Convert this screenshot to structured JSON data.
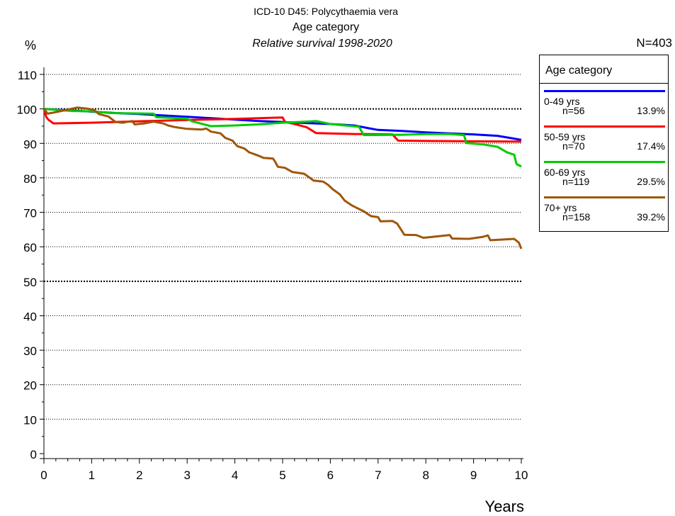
{
  "chart_data": {
    "type": "line",
    "title": "ICD-10 D45: Polycythaemia vera",
    "subtitle": "Age category",
    "subtitle2": "Relative survival 1998-2020",
    "n_total": "N=403",
    "ylabel": "%",
    "xlabel": "Years",
    "xlim": [
      0,
      10
    ],
    "ylim": [
      0,
      110
    ],
    "x_ticks": [
      "0",
      "1",
      "2",
      "3",
      "4",
      "5",
      "6",
      "7",
      "8",
      "9",
      "10"
    ],
    "y_ticks": [
      "0",
      "10",
      "20",
      "30",
      "40",
      "50",
      "60",
      "70",
      "80",
      "90",
      "100",
      "110"
    ],
    "legend": {
      "title": "Age category",
      "placement": "right"
    },
    "series": [
      {
        "name": "0-49 yrs",
        "n": "n=56",
        "pct": "13.9%",
        "color": "#0000ff",
        "points": [
          [
            0,
            100
          ],
          [
            0.5,
            99.6
          ],
          [
            1,
            99.2
          ],
          [
            1.5,
            98.8
          ],
          [
            2,
            98.5
          ],
          [
            2.5,
            98.1
          ],
          [
            3,
            97.7
          ],
          [
            3.5,
            97.3
          ],
          [
            4,
            96.9
          ],
          [
            4.5,
            96.5
          ],
          [
            5,
            96.2
          ],
          [
            5.5,
            95.9
          ],
          [
            6,
            95.6
          ],
          [
            6.5,
            95.2
          ],
          [
            6.8,
            94.4
          ],
          [
            7,
            93.9
          ],
          [
            7.5,
            93.6
          ],
          [
            8,
            93.2
          ],
          [
            8.5,
            92.9
          ],
          [
            9,
            92.6
          ],
          [
            9.5,
            92.2
          ],
          [
            9.8,
            91.5
          ],
          [
            10,
            91.0
          ]
        ]
      },
      {
        "name": "50-59 yrs",
        "n": "n=70",
        "pct": "17.4%",
        "color": "#ff0000",
        "points": [
          [
            0,
            100
          ],
          [
            0.05,
            97.6
          ],
          [
            0.1,
            96.8
          ],
          [
            0.2,
            95.8
          ],
          [
            1,
            96.0
          ],
          [
            2,
            96.4
          ],
          [
            3,
            96.8
          ],
          [
            4,
            97.1
          ],
          [
            5,
            97.5
          ],
          [
            5.05,
            96.2
          ],
          [
            5.2,
            95.8
          ],
          [
            5.5,
            94.7
          ],
          [
            5.7,
            93.0
          ],
          [
            6.5,
            92.7
          ],
          [
            7.3,
            92.6
          ],
          [
            7.42,
            90.8
          ],
          [
            8,
            90.7
          ],
          [
            9,
            90.6
          ],
          [
            10,
            90.5
          ]
        ]
      },
      {
        "name": "60-69 yrs",
        "n": "n=119",
        "pct": "29.5%",
        "color": "#00cc00",
        "points": [
          [
            0,
            100
          ],
          [
            0.3,
            99.7
          ],
          [
            0.6,
            99.4
          ],
          [
            1,
            99.3
          ],
          [
            1.4,
            98.8
          ],
          [
            2.3,
            98.6
          ],
          [
            2.35,
            97.6
          ],
          [
            3,
            97.2
          ],
          [
            3.1,
            96.4
          ],
          [
            3.5,
            95.0
          ],
          [
            4,
            95.2
          ],
          [
            4.5,
            95.5
          ],
          [
            5,
            96.0
          ],
          [
            5.5,
            96.3
          ],
          [
            5.7,
            96.5
          ],
          [
            6,
            95.6
          ],
          [
            6.6,
            94.8
          ],
          [
            6.7,
            92.4
          ],
          [
            7.5,
            92.5
          ],
          [
            8,
            92.7
          ],
          [
            8.5,
            92.7
          ],
          [
            8.8,
            92.4
          ],
          [
            8.85,
            90.1
          ],
          [
            9.2,
            89.7
          ],
          [
            9.5,
            89.0
          ],
          [
            9.7,
            87.4
          ],
          [
            9.85,
            86.7
          ],
          [
            9.9,
            84.0
          ],
          [
            10,
            83.3
          ]
        ]
      },
      {
        "name": "70+ yrs",
        "n": "n=158",
        "pct": "39.2%",
        "color": "#a0560a",
        "points": [
          [
            0,
            100
          ],
          [
            0.08,
            98.6
          ],
          [
            0.3,
            99.2
          ],
          [
            0.5,
            99.8
          ],
          [
            0.7,
            100.4
          ],
          [
            0.9,
            100.1
          ],
          [
            1.05,
            99.7
          ],
          [
            1.15,
            98.5
          ],
          [
            1.35,
            97.8
          ],
          [
            1.5,
            96.2
          ],
          [
            1.65,
            96.0
          ],
          [
            1.85,
            96.5
          ],
          [
            1.9,
            95.5
          ],
          [
            2.1,
            95.8
          ],
          [
            2.3,
            96.3
          ],
          [
            2.5,
            95.8
          ],
          [
            2.6,
            95.2
          ],
          [
            2.75,
            94.7
          ],
          [
            3.0,
            94.2
          ],
          [
            3.3,
            94.0
          ],
          [
            3.4,
            94.3
          ],
          [
            3.5,
            93.4
          ],
          [
            3.7,
            92.9
          ],
          [
            3.8,
            91.6
          ],
          [
            3.95,
            90.8
          ],
          [
            4.05,
            89.2
          ],
          [
            4.2,
            88.5
          ],
          [
            4.3,
            87.4
          ],
          [
            4.5,
            86.4
          ],
          [
            4.6,
            85.8
          ],
          [
            4.8,
            85.6
          ],
          [
            4.85,
            84.5
          ],
          [
            4.9,
            83.2
          ],
          [
            5.05,
            82.9
          ],
          [
            5.2,
            81.7
          ],
          [
            5.45,
            81.2
          ],
          [
            5.55,
            80.2
          ],
          [
            5.65,
            79.2
          ],
          [
            5.85,
            78.9
          ],
          [
            5.95,
            78.0
          ],
          [
            6.05,
            76.7
          ],
          [
            6.2,
            75.2
          ],
          [
            6.3,
            73.4
          ],
          [
            6.45,
            72.0
          ],
          [
            6.55,
            71.3
          ],
          [
            6.7,
            70.3
          ],
          [
            6.85,
            68.9
          ],
          [
            7.0,
            68.6
          ],
          [
            7.05,
            67.4
          ],
          [
            7.3,
            67.5
          ],
          [
            7.4,
            66.7
          ],
          [
            7.55,
            63.5
          ],
          [
            7.8,
            63.4
          ],
          [
            7.95,
            62.6
          ],
          [
            8.15,
            62.9
          ],
          [
            8.5,
            63.4
          ],
          [
            8.55,
            62.4
          ],
          [
            8.9,
            62.3
          ],
          [
            9.2,
            62.9
          ],
          [
            9.3,
            63.3
          ],
          [
            9.35,
            61.9
          ],
          [
            9.6,
            62.1
          ],
          [
            9.85,
            62.3
          ],
          [
            9.95,
            61.2
          ],
          [
            10,
            59.4
          ]
        ]
      }
    ]
  }
}
